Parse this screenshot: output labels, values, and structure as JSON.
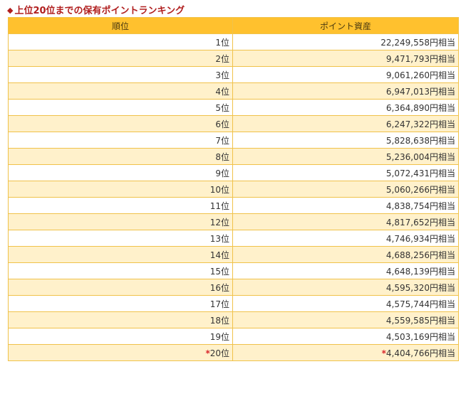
{
  "title": {
    "bullet": "◆",
    "text": "上位20位までの保有ポイントランキング"
  },
  "table": {
    "headers": {
      "rank": "順位",
      "points": "ポイント資産"
    },
    "rows": [
      {
        "rank": "1位",
        "points": "22,249,558円相当"
      },
      {
        "rank": "2位",
        "points": "9,471,793円相当"
      },
      {
        "rank": "3位",
        "points": "9,061,260円相当"
      },
      {
        "rank": "4位",
        "points": "6,947,013円相当"
      },
      {
        "rank": "5位",
        "points": "6,364,890円相当"
      },
      {
        "rank": "6位",
        "points": "6,247,322円相当"
      },
      {
        "rank": "7位",
        "points": "5,828,638円相当"
      },
      {
        "rank": "8位",
        "points": "5,236,004円相当"
      },
      {
        "rank": "9位",
        "points": "5,072,431円相当"
      },
      {
        "rank": "10位",
        "points": "5,060,266円相当"
      },
      {
        "rank": "11位",
        "points": "4,838,754円相当"
      },
      {
        "rank": "12位",
        "points": "4,817,652円相当"
      },
      {
        "rank": "13位",
        "points": "4,746,934円相当"
      },
      {
        "rank": "14位",
        "points": "4,688,256円相当"
      },
      {
        "rank": "15位",
        "points": "4,648,139円相当"
      },
      {
        "rank": "16位",
        "points": "4,595,320円相当"
      },
      {
        "rank": "17位",
        "points": "4,575,744円相当"
      },
      {
        "rank": "18位",
        "points": "4,559,585円相当"
      },
      {
        "rank": "19位",
        "points": "4,503,169円相当"
      },
      {
        "rank": "20位",
        "points": "4,404,766円相当",
        "marker": "*"
      }
    ]
  },
  "colors": {
    "title": "#b01e1e",
    "header_bg": "#ffc12e",
    "row_alt_bg": "#fff1cb",
    "border": "#f0c24a",
    "marker": "#d9262b"
  }
}
